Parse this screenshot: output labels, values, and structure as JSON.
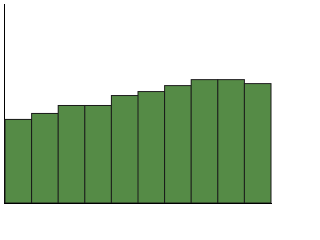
{
  "chart_data": {
    "type": "bar",
    "values": [
      42,
      45,
      49,
      49,
      54,
      56,
      59,
      62,
      62,
      60
    ],
    "color": "#558b46",
    "ylim": [
      0,
      100
    ]
  }
}
